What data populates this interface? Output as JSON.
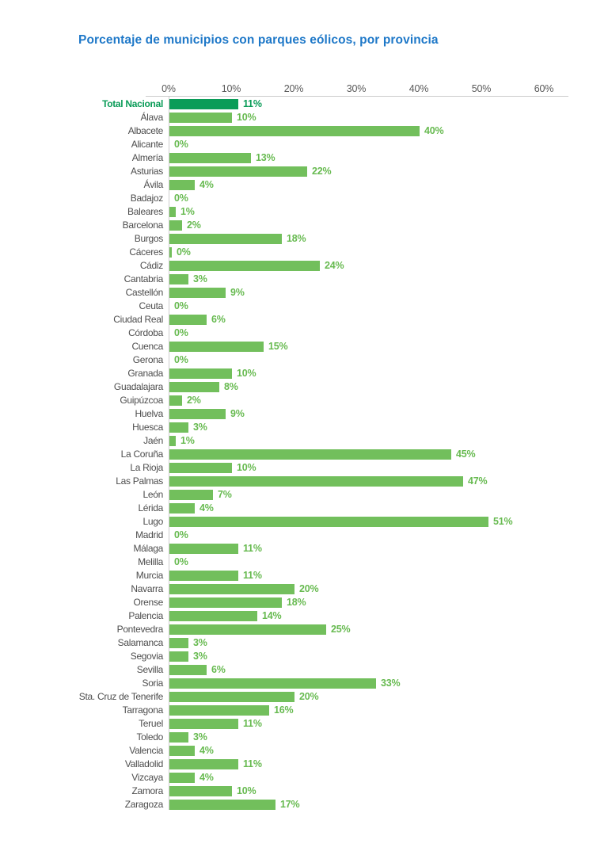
{
  "title": "Porcentaje de municipios con parques eólicos, por provincia",
  "colors": {
    "title": "#1E78C8",
    "bar": "#72BF5C",
    "total_bar": "#0A9C58",
    "value_label": "#67BA50",
    "category_label": "#4D4D4D",
    "axis_label": "#595959",
    "axis_line": "#CCCCCC"
  },
  "chart_data": {
    "type": "bar",
    "orientation": "horizontal",
    "title": "Porcentaje de municipios con parques eólicos, por provincia",
    "xlabel": "",
    "ylabel": "",
    "unit": "%",
    "xlim": [
      0,
      60
    ],
    "x_ticks": [
      "0%",
      "10%",
      "20%",
      "30%",
      "40%",
      "50%",
      "60%"
    ],
    "grid": false,
    "legend": "none",
    "highlight_category": "Total Nacional",
    "rows": [
      {
        "label": "Total Nacional",
        "value": 11,
        "display": "11%"
      },
      {
        "label": "Álava",
        "value": 10,
        "display": "10%"
      },
      {
        "label": "Albacete",
        "value": 40,
        "display": "40%"
      },
      {
        "label": "Alicante",
        "value": 0,
        "display": "0%"
      },
      {
        "label": "Almería",
        "value": 13,
        "display": "13%"
      },
      {
        "label": "Asturias",
        "value": 22,
        "display": "22%"
      },
      {
        "label": "Ávila",
        "value": 4,
        "display": "4%"
      },
      {
        "label": "Badajoz",
        "value": 0,
        "display": "0%"
      },
      {
        "label": "Baleares",
        "value": 1,
        "display": "1%"
      },
      {
        "label": "Barcelona",
        "value": 2,
        "display": "2%"
      },
      {
        "label": "Burgos",
        "value": 18,
        "display": "18%"
      },
      {
        "label": "Cáceres",
        "value": 0,
        "display": "0%",
        "bar_value": 0.4
      },
      {
        "label": "Cádiz",
        "value": 24,
        "display": "24%"
      },
      {
        "label": "Cantabria",
        "value": 3,
        "display": "3%"
      },
      {
        "label": "Castellón",
        "value": 9,
        "display": "9%"
      },
      {
        "label": "Ceuta",
        "value": 0,
        "display": "0%"
      },
      {
        "label": "Ciudad Real",
        "value": 6,
        "display": "6%"
      },
      {
        "label": "Córdoba",
        "value": 0,
        "display": "0%"
      },
      {
        "label": "Cuenca",
        "value": 15,
        "display": "15%"
      },
      {
        "label": "Gerona",
        "value": 0,
        "display": "0%"
      },
      {
        "label": "Granada",
        "value": 10,
        "display": "10%"
      },
      {
        "label": "Guadalajara",
        "value": 8,
        "display": "8%"
      },
      {
        "label": "Guipúzcoa",
        "value": 2,
        "display": "2%"
      },
      {
        "label": "Huelva",
        "value": 9,
        "display": "9%"
      },
      {
        "label": "Huesca",
        "value": 3,
        "display": "3%"
      },
      {
        "label": "Jaén",
        "value": 1,
        "display": "1%"
      },
      {
        "label": "La Coruña",
        "value": 45,
        "display": "45%"
      },
      {
        "label": "La Rioja",
        "value": 10,
        "display": "10%"
      },
      {
        "label": "Las Palmas",
        "value": 47,
        "display": "47%"
      },
      {
        "label": "León",
        "value": 7,
        "display": "7%"
      },
      {
        "label": "Lérida",
        "value": 4,
        "display": "4%"
      },
      {
        "label": "Lugo",
        "value": 51,
        "display": "51%"
      },
      {
        "label": "Madrid",
        "value": 0,
        "display": "0%"
      },
      {
        "label": "Málaga",
        "value": 11,
        "display": "11%"
      },
      {
        "label": "Melilla",
        "value": 0,
        "display": "0%"
      },
      {
        "label": "Murcia",
        "value": 11,
        "display": "11%"
      },
      {
        "label": "Navarra",
        "value": 20,
        "display": "20%"
      },
      {
        "label": "Orense",
        "value": 18,
        "display": "18%"
      },
      {
        "label": "Palencia",
        "value": 14,
        "display": "14%"
      },
      {
        "label": "Pontevedra",
        "value": 25,
        "display": "25%"
      },
      {
        "label": "Salamanca",
        "value": 3,
        "display": "3%"
      },
      {
        "label": "Segovia",
        "value": 3,
        "display": "3%"
      },
      {
        "label": "Sevilla",
        "value": 6,
        "display": "6%"
      },
      {
        "label": "Soria",
        "value": 33,
        "display": "33%"
      },
      {
        "label": "Sta. Cruz de Tenerife",
        "value": 20,
        "display": "20%"
      },
      {
        "label": "Tarragona",
        "value": 16,
        "display": "16%"
      },
      {
        "label": "Teruel",
        "value": 11,
        "display": "11%"
      },
      {
        "label": "Toledo",
        "value": 3,
        "display": "3%"
      },
      {
        "label": "Valencia",
        "value": 4,
        "display": "4%"
      },
      {
        "label": "Valladolid",
        "value": 11,
        "display": "11%"
      },
      {
        "label": "Vizcaya",
        "value": 4,
        "display": "4%"
      },
      {
        "label": "Zamora",
        "value": 10,
        "display": "10%"
      },
      {
        "label": "Zaragoza",
        "value": 17,
        "display": "17%"
      }
    ]
  }
}
